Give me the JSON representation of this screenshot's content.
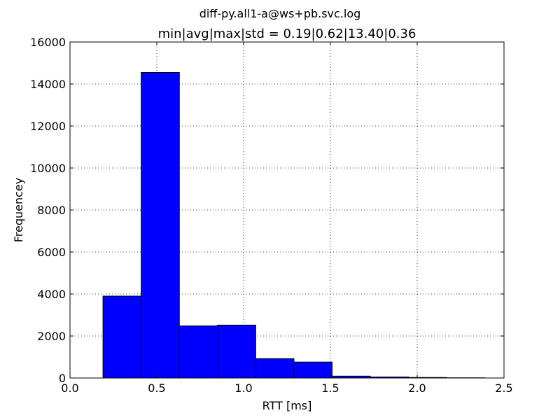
{
  "suptitle": "diff-py.all1-a@ws+pb.svc.log",
  "chart_data": {
    "type": "bar",
    "title": "min|avg|max|std = 0.19|0.62|13.40|0.36",
    "xlabel": "RTT [ms]",
    "ylabel": "Frequencey",
    "xlim": [
      0.0,
      2.5
    ],
    "ylim": [
      0,
      16000
    ],
    "xticks": [
      "0.0",
      "0.5",
      "1.0",
      "1.5",
      "2.0",
      "2.5"
    ],
    "yticks": [
      "0",
      "2000",
      "4000",
      "6000",
      "8000",
      "10000",
      "12000",
      "14000",
      "16000"
    ],
    "grid": true,
    "bar_color": "#0000ff",
    "bins": [
      {
        "x0": 0.19,
        "x1": 0.41,
        "value": 3900
      },
      {
        "x0": 0.41,
        "x1": 0.63,
        "value": 14550
      },
      {
        "x0": 0.63,
        "x1": 0.85,
        "value": 2480
      },
      {
        "x0": 0.85,
        "x1": 1.07,
        "value": 2520
      },
      {
        "x0": 1.07,
        "x1": 1.29,
        "value": 920
      },
      {
        "x0": 1.29,
        "x1": 1.51,
        "value": 760
      },
      {
        "x0": 1.51,
        "x1": 1.73,
        "value": 90
      },
      {
        "x0": 1.73,
        "x1": 1.95,
        "value": 50
      },
      {
        "x0": 1.95,
        "x1": 2.17,
        "value": 25
      },
      {
        "x0": 2.17,
        "x1": 2.39,
        "value": 10
      }
    ]
  }
}
